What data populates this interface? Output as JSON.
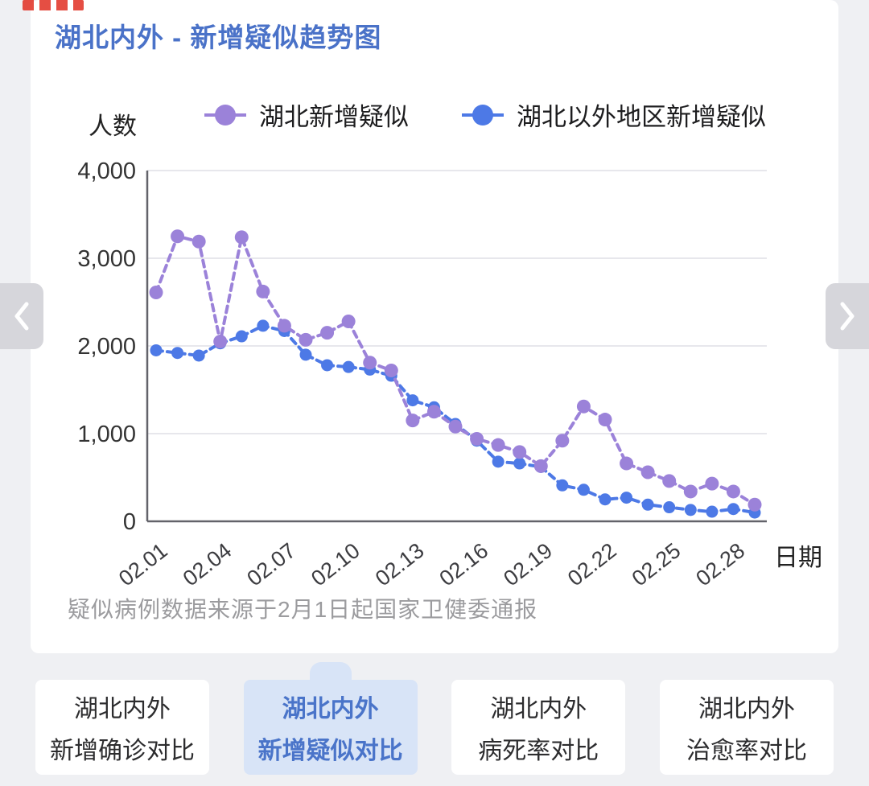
{
  "header": {
    "title": "湖北内外 - 新增疑似趋势图"
  },
  "chart_data": {
    "type": "line",
    "title": "湖北内外 - 新增疑似趋势图",
    "ylabel": "人数",
    "xlabel": "日期",
    "ylim": [
      0,
      4000
    ],
    "yticks": [
      0,
      1000,
      2000,
      3000,
      4000
    ],
    "ytick_labels": [
      "0",
      "1,000",
      "2,000",
      "3,000",
      "4,000"
    ],
    "grid": true,
    "legend_position": "top",
    "line_style": "dashed",
    "x": [
      "02.01",
      "02.02",
      "02.03",
      "02.04",
      "02.05",
      "02.06",
      "02.07",
      "02.08",
      "02.09",
      "02.10",
      "02.11",
      "02.12",
      "02.13",
      "02.14",
      "02.15",
      "02.16",
      "02.17",
      "02.18",
      "02.19",
      "02.20",
      "02.21",
      "02.22",
      "02.23",
      "02.24",
      "02.25",
      "02.26",
      "02.27",
      "02.28",
      "02.29"
    ],
    "xtick_labels": [
      "02.01",
      "02.04",
      "02.07",
      "02.10",
      "02.13",
      "02.16",
      "02.19",
      "02.22",
      "02.25",
      "02.28"
    ],
    "series": [
      {
        "name": "湖北新增疑似",
        "color": "#9b82d9",
        "values": [
          2610,
          3250,
          3190,
          2050,
          3240,
          2620,
          2230,
          2070,
          2150,
          2280,
          1810,
          1720,
          1150,
          1250,
          1080,
          940,
          870,
          790,
          630,
          920,
          1310,
          1160,
          660,
          560,
          460,
          340,
          430,
          340,
          190
        ]
      },
      {
        "name": "湖北以外地区新增疑似",
        "color": "#4d79e6",
        "values": [
          1950,
          1920,
          1890,
          2030,
          2110,
          2230,
          2170,
          1900,
          1780,
          1760,
          1730,
          1660,
          1380,
          1300,
          1110,
          920,
          680,
          660,
          620,
          410,
          360,
          250,
          270,
          190,
          160,
          130,
          110,
          140,
          100
        ]
      }
    ],
    "source_note": "疑似病例数据来源于2月1日起国家卫健委通报"
  },
  "carousel": {
    "prev": "previous chart",
    "next": "next chart"
  },
  "tabs": [
    {
      "label_line1": "湖北内外",
      "label_line2": "新增确诊对比",
      "active": false
    },
    {
      "label_line1": "湖北内外",
      "label_line2": "新增疑似对比",
      "active": true
    },
    {
      "label_line1": "湖北内外",
      "label_line2": "病死率对比",
      "active": false
    },
    {
      "label_line1": "湖北内外",
      "label_line2": "治愈率对比",
      "active": false
    }
  ],
  "colors": {
    "title_blue": "#4a72c8",
    "hubei_purple": "#9b82d9",
    "non_hubei_blue": "#4d79e6",
    "active_tab_bg": "#d8e4f7",
    "active_tab_text": "#4a74c9",
    "note_gray": "#9b9b9e"
  }
}
